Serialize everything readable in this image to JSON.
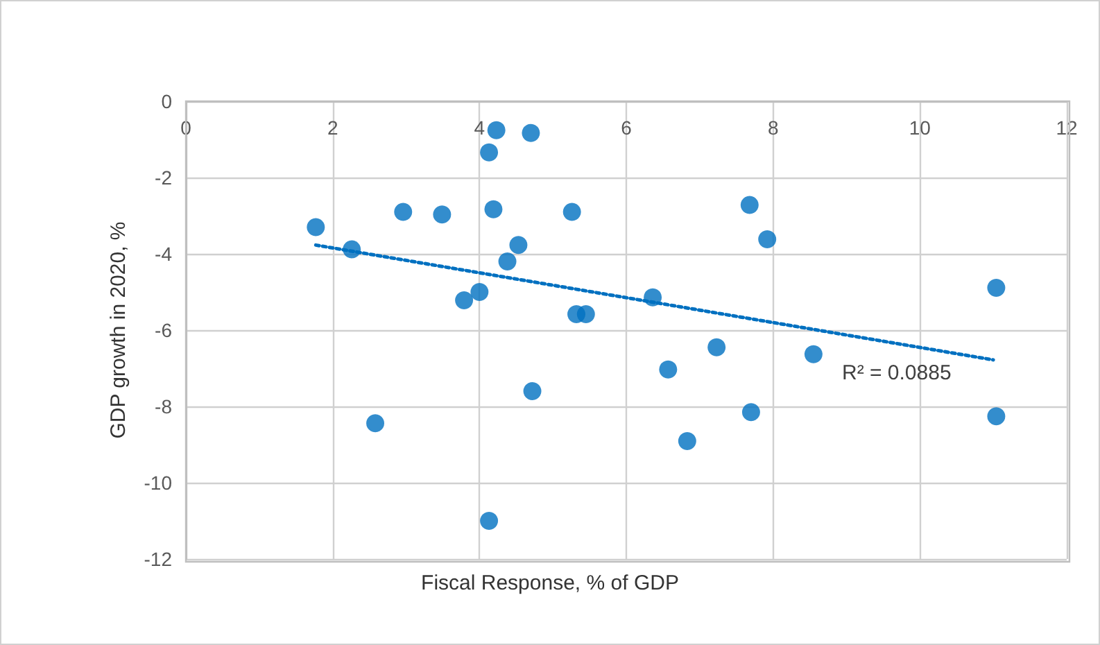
{
  "chart_data": {
    "type": "scatter",
    "xlabel": "Fiscal Response, % of GDP",
    "ylabel": "GDP growth in 2020, %",
    "xlim": [
      0,
      12
    ],
    "xticks": [
      0,
      2,
      4,
      6,
      8,
      10,
      12
    ],
    "ylim": [
      -12,
      0
    ],
    "yticks": [
      -12,
      -10,
      -8,
      -6,
      -4,
      -2,
      0
    ],
    "grid": true,
    "marker": "circle",
    "annotations": [
      "R² = 0.0885"
    ],
    "series": [
      {
        "color": "#0070c0",
        "x": [
          1.77,
          2.26,
          2.96,
          3.49,
          4.23,
          4.13,
          4.7,
          4.19,
          5.26,
          4.53,
          4.38,
          4.0,
          3.79,
          5.32,
          5.45,
          4.72,
          2.58,
          4.13,
          7.68,
          7.92,
          6.36,
          7.23,
          6.57,
          8.55,
          7.7,
          6.83,
          11.04,
          11.04
        ],
        "values": [
          -3.3,
          -3.88,
          -2.9,
          -2.97,
          -0.76,
          -1.34,
          -0.83,
          -2.83,
          -2.9,
          -3.77,
          -4.2,
          -5.0,
          -5.22,
          -5.58,
          -5.58,
          -7.6,
          -8.44,
          -11.0,
          -2.72,
          -3.62,
          -5.14,
          -6.45,
          -7.03,
          -6.63,
          -8.15,
          -8.91,
          -4.89,
          -8.26
        ]
      },
      {
        "type": "line",
        "color": "#0070c0",
        "marker": "none",
        "line_style": "dotted",
        "x": [
          1.77,
          11.0
        ],
        "values": [
          -3.77,
          -6.78
        ]
      }
    ]
  }
}
